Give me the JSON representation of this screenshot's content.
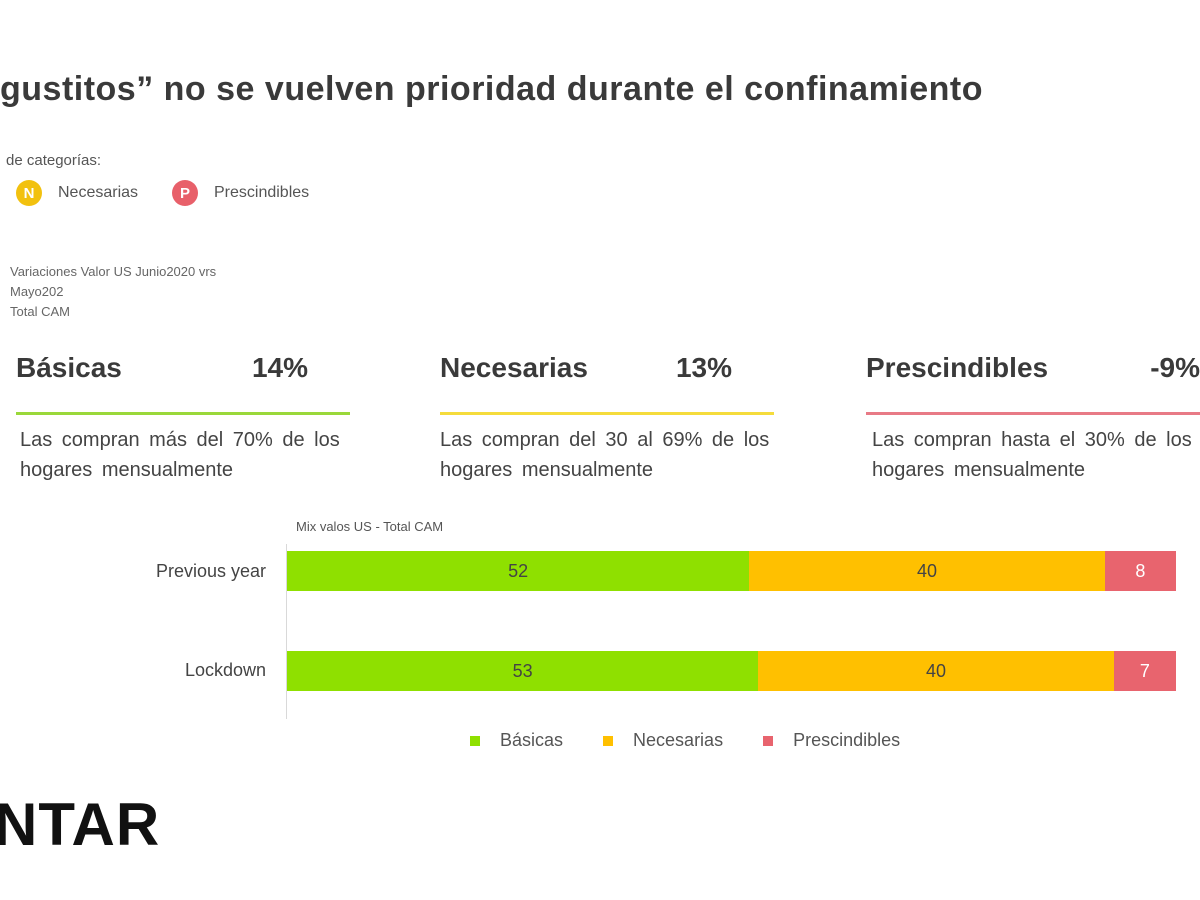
{
  "title": "gustitos” no se vuelven prioridad durante el confinamiento",
  "legend_header": "de categorías:",
  "category_legend": [
    {
      "badge": "N",
      "label": "Necesarias",
      "color": "#f2c10f"
    },
    {
      "badge": "P",
      "label": "Prescindibles",
      "color": "#e8606a"
    }
  ],
  "note_lines": [
    "Variaciones Valor US Junio2020 vrs",
    "Mayo202",
    "Total CAM"
  ],
  "cards": [
    {
      "name": "Básicas",
      "value": "14%",
      "color": "#9ad83a",
      "desc": "Las compran más del 70% de los hogares mensualmente"
    },
    {
      "name": "Necesarias",
      "value": "13%",
      "color": "#f5dc3c",
      "desc": "Las compran del 30 al 69% de los hogares mensualmente"
    },
    {
      "name": "Prescindibles",
      "value": "-9%",
      "color": "#e87a86",
      "desc": "Las compran hasta el 30% de los hogares mensualmente"
    }
  ],
  "logo": "NTAR",
  "chart_data": {
    "type": "bar",
    "orientation": "horizontal",
    "stacked": true,
    "subtitle": "Mix valos US - Total CAM",
    "categories": [
      "Previous year",
      "Lockdown"
    ],
    "series": [
      {
        "name": "Básicas",
        "values": [
          52,
          53
        ],
        "color": "#8fe000"
      },
      {
        "name": "Necesarias",
        "values": [
          40,
          40
        ],
        "color": "#ffc000"
      },
      {
        "name": "Prescindibles",
        "values": [
          8,
          7
        ],
        "color": "#e8646e"
      }
    ],
    "legend": "bottom"
  }
}
